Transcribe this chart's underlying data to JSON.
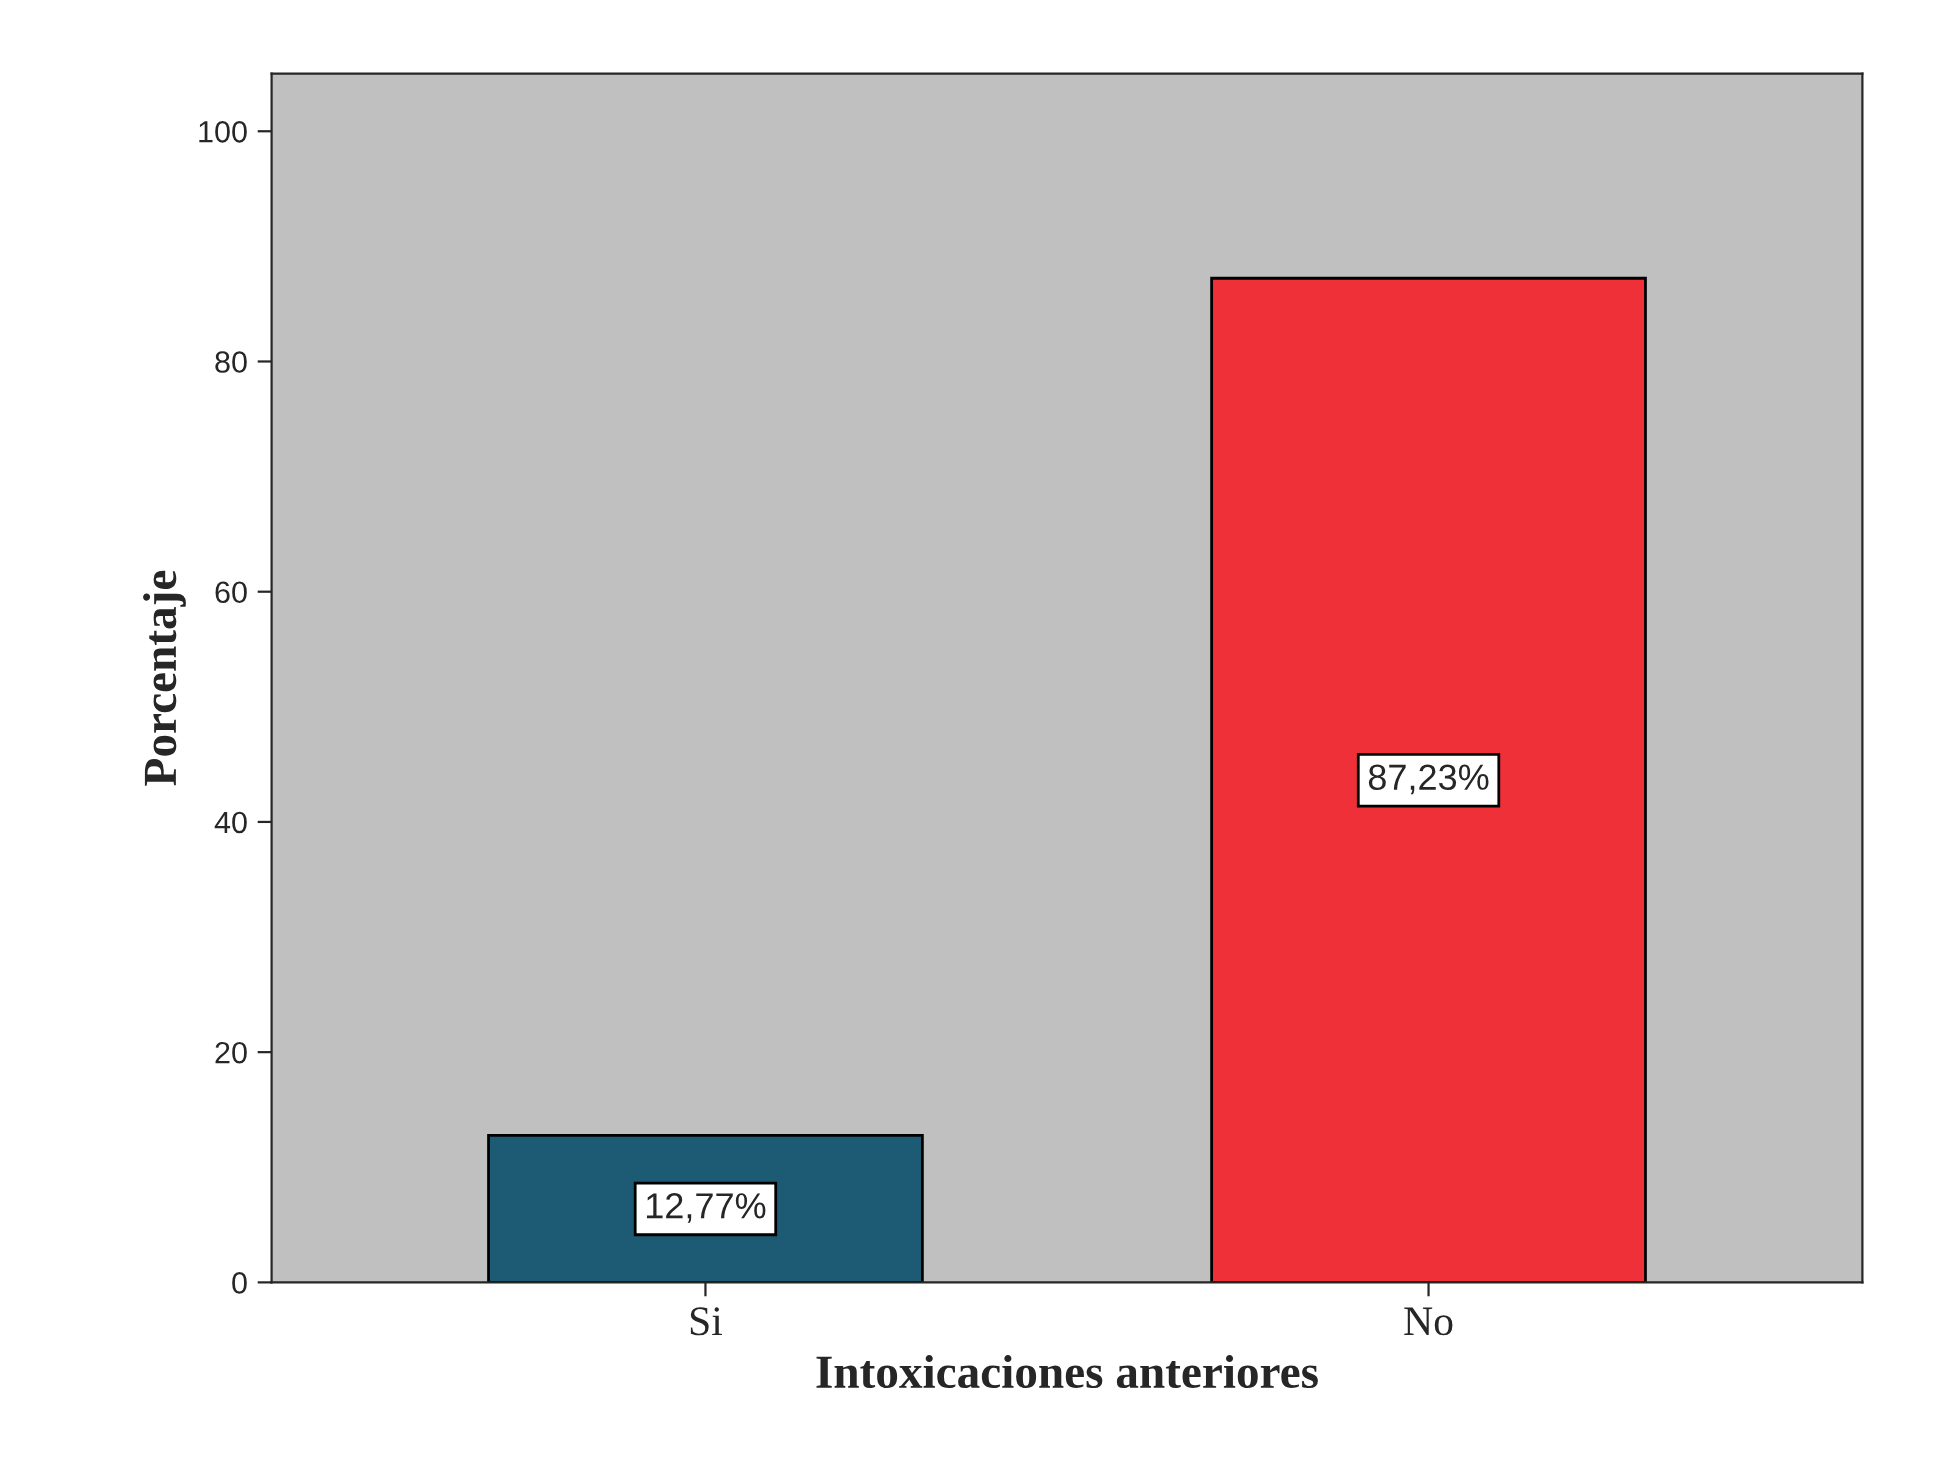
{
  "chart_data": {
    "type": "bar",
    "xlabel": "Intoxicaciones anteriores",
    "ylabel": "Porcentaje",
    "categories": [
      "Si",
      "No"
    ],
    "values": [
      12.77,
      87.23
    ],
    "colors": [
      "#1c5b73",
      "#ef3038"
    ],
    "value_labels": [
      "12,77%",
      "87,23%"
    ],
    "ylim": [
      0,
      105
    ],
    "yticks": [
      0,
      20,
      40,
      60,
      80,
      100
    ],
    "grid": false,
    "legend": false
  }
}
